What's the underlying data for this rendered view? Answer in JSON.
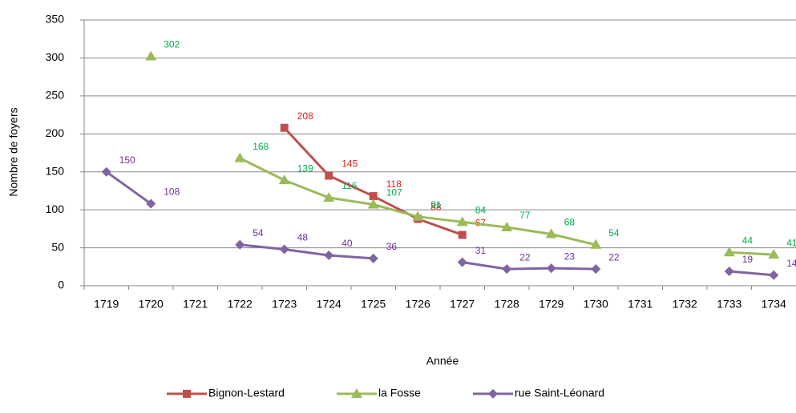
{
  "chart_data": {
    "type": "line",
    "x_label": "Année",
    "y_label": "Nombre de foyers",
    "categories": [
      "1719",
      "1720",
      "1721",
      "1722",
      "1723",
      "1724",
      "1725",
      "1726",
      "1727",
      "1728",
      "1729",
      "1730",
      "1731",
      "1732",
      "1733",
      "1734"
    ],
    "series": [
      {
        "name": "Bignon-Lestard",
        "color": "#c0504d",
        "label_color": "#e0201b",
        "marker": "square",
        "values": [
          null,
          null,
          null,
          null,
          208,
          145,
          118,
          88,
          67,
          null,
          null,
          null,
          null,
          null,
          null,
          null
        ]
      },
      {
        "name": "la Fosse",
        "color": "#9bbb59",
        "label_color": "#00b050",
        "marker": "triangle",
        "values": [
          null,
          302,
          null,
          168,
          139,
          116,
          107,
          91,
          84,
          77,
          68,
          54,
          null,
          null,
          44,
          41
        ]
      },
      {
        "name": "rue Saint-Léonard",
        "color": "#8064a2",
        "label_color": "#7030a0",
        "marker": "diamond",
        "values": [
          150,
          108,
          null,
          54,
          48,
          40,
          36,
          null,
          31,
          22,
          23,
          22,
          null,
          null,
          19,
          14
        ]
      }
    ],
    "ylim": [
      0,
      350
    ],
    "yticks": [
      0,
      50,
      100,
      150,
      200,
      250,
      300,
      350
    ],
    "grid": true,
    "legend": "bottom"
  }
}
